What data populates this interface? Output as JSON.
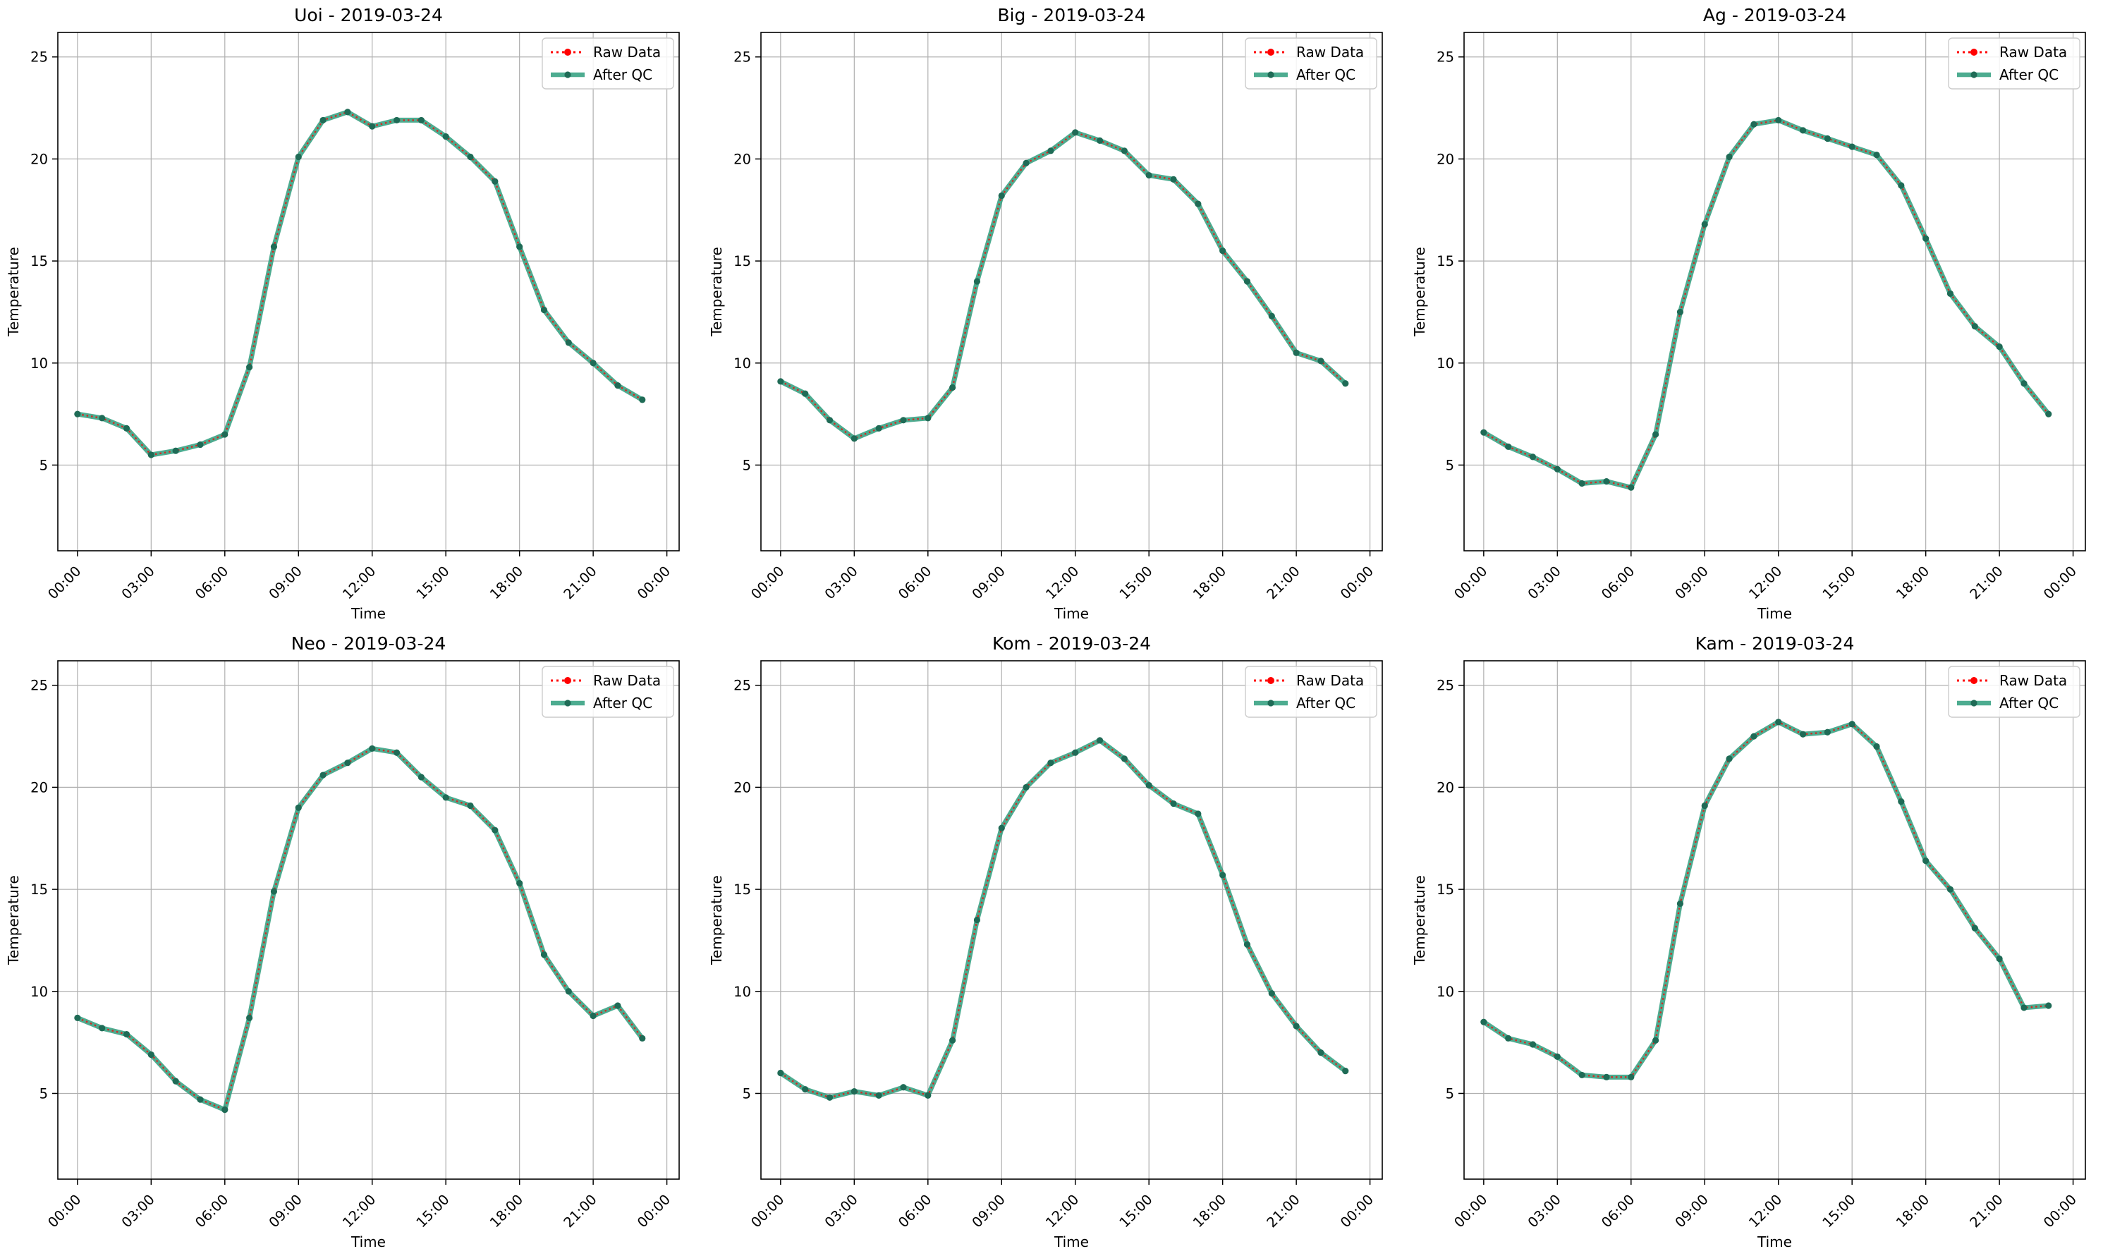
{
  "legend": {
    "raw_label": "Raw Data",
    "qc_label": "After QC"
  },
  "colors": {
    "raw": "#ff0000",
    "qc": "#2e9d7c",
    "marker": "#1f6b56",
    "grid": "#b0b0b0"
  },
  "chart_data": [
    {
      "type": "line",
      "title": "Uoi - 2019-03-24",
      "xlabel": "Time",
      "ylabel": "Temperature",
      "x_ticks": [
        "00:00",
        "03:00",
        "06:00",
        "09:00",
        "12:00",
        "15:00",
        "18:00",
        "21:00",
        "00:00"
      ],
      "y_ticks": [
        5,
        10,
        15,
        20,
        25
      ],
      "ylim": [
        0.8,
        26.2
      ],
      "grid": true,
      "legend_position": "top-right",
      "series": [
        {
          "name": "Raw Data",
          "values": [
            7.5,
            7.3,
            6.8,
            5.5,
            5.7,
            6.0,
            6.5,
            9.8,
            15.7,
            20.1,
            21.9,
            22.3,
            21.6,
            21.9,
            21.9,
            21.1,
            20.1,
            18.9,
            15.7,
            12.6,
            11.0,
            10.0,
            8.9,
            8.2
          ]
        },
        {
          "name": "After QC",
          "values": [
            7.5,
            7.3,
            6.8,
            5.5,
            5.7,
            6.0,
            6.5,
            9.8,
            15.7,
            20.1,
            21.9,
            22.3,
            21.6,
            21.9,
            21.9,
            21.1,
            20.1,
            18.9,
            15.7,
            12.6,
            11.0,
            10.0,
            8.9,
            8.2
          ]
        }
      ]
    },
    {
      "type": "line",
      "title": "Big - 2019-03-24",
      "xlabel": "Time",
      "ylabel": "Temperature",
      "x_ticks": [
        "00:00",
        "03:00",
        "06:00",
        "09:00",
        "12:00",
        "15:00",
        "18:00",
        "21:00",
        "00:00"
      ],
      "y_ticks": [
        5,
        10,
        15,
        20,
        25
      ],
      "ylim": [
        0.8,
        26.2
      ],
      "grid": true,
      "legend_position": "top-right",
      "series": [
        {
          "name": "Raw Data",
          "values": [
            9.1,
            8.5,
            7.2,
            6.3,
            6.8,
            7.2,
            7.3,
            8.8,
            14.0,
            18.2,
            19.8,
            20.4,
            21.3,
            20.9,
            20.4,
            19.2,
            19.0,
            17.8,
            15.5,
            14.0,
            12.3,
            10.5,
            10.1,
            9.0
          ]
        },
        {
          "name": "After QC",
          "values": [
            9.1,
            8.5,
            7.2,
            6.3,
            6.8,
            7.2,
            7.3,
            8.8,
            14.0,
            18.2,
            19.8,
            20.4,
            21.3,
            20.9,
            20.4,
            19.2,
            19.0,
            17.8,
            15.5,
            14.0,
            12.3,
            10.5,
            10.1,
            9.0
          ]
        }
      ]
    },
    {
      "type": "line",
      "title": "Ag - 2019-03-24",
      "xlabel": "Time",
      "ylabel": "Temperature",
      "x_ticks": [
        "00:00",
        "03:00",
        "06:00",
        "09:00",
        "12:00",
        "15:00",
        "18:00",
        "21:00",
        "00:00"
      ],
      "y_ticks": [
        5,
        10,
        15,
        20,
        25
      ],
      "ylim": [
        0.8,
        26.2
      ],
      "grid": true,
      "legend_position": "top-right",
      "series": [
        {
          "name": "Raw Data",
          "values": [
            6.6,
            5.9,
            5.4,
            4.8,
            4.1,
            4.2,
            3.9,
            6.5,
            12.5,
            16.8,
            20.1,
            21.7,
            21.9,
            21.4,
            21.0,
            20.6,
            20.2,
            18.7,
            16.1,
            13.4,
            11.8,
            10.8,
            9.0,
            7.5
          ]
        },
        {
          "name": "After QC",
          "values": [
            6.6,
            5.9,
            5.4,
            4.8,
            4.1,
            4.2,
            3.9,
            6.5,
            12.5,
            16.8,
            20.1,
            21.7,
            21.9,
            21.4,
            21.0,
            20.6,
            20.2,
            18.7,
            16.1,
            13.4,
            11.8,
            10.8,
            9.0,
            7.5
          ]
        }
      ]
    },
    {
      "type": "line",
      "title": "Neo - 2019-03-24",
      "xlabel": "Time",
      "ylabel": "Temperature",
      "x_ticks": [
        "00:00",
        "03:00",
        "06:00",
        "09:00",
        "12:00",
        "15:00",
        "18:00",
        "21:00",
        "00:00"
      ],
      "y_ticks": [
        5,
        10,
        15,
        20,
        25
      ],
      "ylim": [
        0.8,
        26.2
      ],
      "grid": true,
      "legend_position": "top-right",
      "series": [
        {
          "name": "Raw Data",
          "values": [
            8.7,
            8.2,
            7.9,
            6.9,
            5.6,
            4.7,
            4.2,
            8.7,
            14.9,
            19.0,
            20.6,
            21.2,
            21.9,
            21.7,
            20.5,
            19.5,
            19.1,
            17.9,
            15.3,
            11.8,
            10.0,
            8.8,
            9.3,
            7.7
          ]
        },
        {
          "name": "After QC",
          "values": [
            8.7,
            8.2,
            7.9,
            6.9,
            5.6,
            4.7,
            4.2,
            8.7,
            14.9,
            19.0,
            20.6,
            21.2,
            21.9,
            21.7,
            20.5,
            19.5,
            19.1,
            17.9,
            15.3,
            11.8,
            10.0,
            8.8,
            9.3,
            7.7
          ]
        }
      ]
    },
    {
      "type": "line",
      "title": "Kom - 2019-03-24",
      "xlabel": "Time",
      "ylabel": "Temperature",
      "x_ticks": [
        "00:00",
        "03:00",
        "06:00",
        "09:00",
        "12:00",
        "15:00",
        "18:00",
        "21:00",
        "00:00"
      ],
      "y_ticks": [
        5,
        10,
        15,
        20,
        25
      ],
      "ylim": [
        0.8,
        26.2
      ],
      "grid": true,
      "legend_position": "top-right",
      "series": [
        {
          "name": "Raw Data",
          "values": [
            6.0,
            5.2,
            4.8,
            5.1,
            4.9,
            5.3,
            4.9,
            7.6,
            13.5,
            18.0,
            20.0,
            21.2,
            21.7,
            22.3,
            21.4,
            20.1,
            19.2,
            18.7,
            15.7,
            12.3,
            9.9,
            8.3,
            7.0,
            6.1
          ]
        },
        {
          "name": "After QC",
          "values": [
            6.0,
            5.2,
            4.8,
            5.1,
            4.9,
            5.3,
            4.9,
            7.6,
            13.5,
            18.0,
            20.0,
            21.2,
            21.7,
            22.3,
            21.4,
            20.1,
            19.2,
            18.7,
            15.7,
            12.3,
            9.9,
            8.3,
            7.0,
            6.1
          ]
        }
      ]
    },
    {
      "type": "line",
      "title": "Kam - 2019-03-24",
      "xlabel": "Time",
      "ylabel": "Temperature",
      "x_ticks": [
        "00:00",
        "03:00",
        "06:00",
        "09:00",
        "12:00",
        "15:00",
        "18:00",
        "21:00",
        "00:00"
      ],
      "y_ticks": [
        5,
        10,
        15,
        20,
        25
      ],
      "ylim": [
        0.8,
        26.2
      ],
      "grid": true,
      "legend_position": "top-right",
      "series": [
        {
          "name": "Raw Data",
          "values": [
            8.5,
            7.7,
            7.4,
            6.8,
            5.9,
            5.8,
            5.8,
            7.6,
            14.3,
            19.1,
            21.4,
            22.5,
            23.2,
            22.6,
            22.7,
            23.1,
            22.0,
            19.3,
            16.4,
            15.0,
            13.1,
            11.6,
            9.2,
            9.3
          ]
        },
        {
          "name": "After QC",
          "values": [
            8.5,
            7.7,
            7.4,
            6.8,
            5.9,
            5.8,
            5.8,
            7.6,
            14.3,
            19.1,
            21.4,
            22.5,
            23.2,
            22.6,
            22.7,
            23.1,
            22.0,
            19.3,
            16.4,
            15.0,
            13.1,
            11.6,
            9.2,
            9.3
          ]
        }
      ]
    }
  ]
}
